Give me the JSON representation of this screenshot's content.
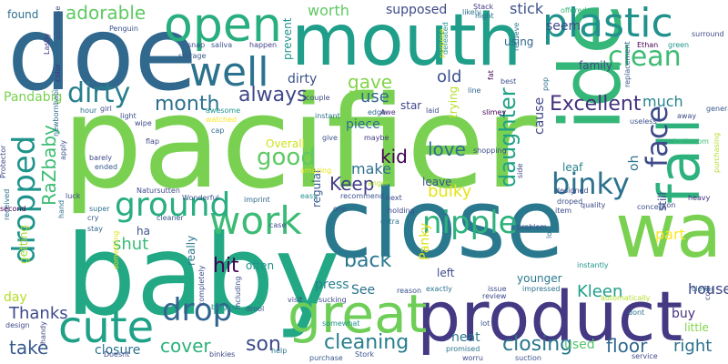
{
  "words": [
    {
      "text": "pacifier",
      "color": "#7ad151"
    },
    {
      "text": "baby",
      "color": "#22a884"
    },
    {
      "text": "close",
      "color": "#2a788e"
    },
    {
      "text": "mouth",
      "color": "#1f9e89"
    },
    {
      "text": "doe",
      "color": "#31688e"
    },
    {
      "text": "product",
      "color": "#443983"
    },
    {
      "text": "idea",
      "color": "#35b779"
    },
    {
      "text": "wa",
      "color": "#7ad151"
    },
    {
      "text": "great",
      "color": "#6ece58"
    },
    {
      "text": "fall",
      "color": "#2db27d"
    },
    {
      "text": "open",
      "color": "#29af7f"
    },
    {
      "text": "well",
      "color": "#2c728e"
    },
    {
      "text": "plastic",
      "color": "#21918c"
    },
    {
      "text": "cute",
      "color": "#1fa188"
    },
    {
      "text": "work",
      "color": "#3bbb75"
    },
    {
      "text": "dropped",
      "color": "#1f948c"
    },
    {
      "text": "ground",
      "color": "#28ae80"
    },
    {
      "text": "dirty",
      "color": "#277f8e"
    },
    {
      "text": "nipple",
      "color": "#2db27d"
    },
    {
      "text": "binky",
      "color": "#2c728e"
    },
    {
      "text": "drop",
      "color": "#32658e"
    },
    {
      "text": "face",
      "color": "#3e4a89"
    },
    {
      "text": "clean",
      "color": "#3dbc74"
    },
    {
      "text": "Excellent",
      "color": "#46327e"
    },
    {
      "text": "cleaning",
      "color": "#277f8e"
    },
    {
      "text": "closing",
      "color": "#2a788e"
    },
    {
      "text": "daughter",
      "color": "#20a386"
    },
    {
      "text": "good",
      "color": "#5ec962"
    },
    {
      "text": "always",
      "color": "#3f4788"
    },
    {
      "text": "adorable",
      "color": "#5ec962"
    },
    {
      "text": "month",
      "color": "#2d708e"
    },
    {
      "text": "Keep",
      "color": "#433e85"
    },
    {
      "text": "RaZbaby",
      "color": "#3dbc74"
    },
    {
      "text": "hit",
      "color": "#440154"
    },
    {
      "text": "love",
      "color": "#2d708e"
    },
    {
      "text": "gave",
      "color": "#84d44b"
    },
    {
      "text": "cover",
      "color": "#2db27d"
    },
    {
      "text": "back",
      "color": "#2a778e"
    },
    {
      "text": "floor",
      "color": "#31688e"
    },
    {
      "text": "son",
      "color": "#3e4a89"
    },
    {
      "text": "kid",
      "color": "#440154"
    },
    {
      "text": "take",
      "color": "#38598c"
    },
    {
      "text": "bulky",
      "color": "#e5e419"
    },
    {
      "text": "make",
      "color": "#2d708e"
    },
    {
      "text": "use",
      "color": "#31688e"
    },
    {
      "text": "shut",
      "color": "#3aba76"
    },
    {
      "text": "Kleen",
      "color": "#1f9e89"
    },
    {
      "text": "old",
      "color": "#3b528b"
    },
    {
      "text": "right",
      "color": "#2c728e"
    },
    {
      "text": "worth",
      "color": "#5ec962"
    },
    {
      "text": "stick",
      "color": "#3b528b"
    },
    {
      "text": "supposed",
      "color": "#3e4a89"
    },
    {
      "text": "seem",
      "color": "#3e4a89"
    },
    {
      "text": "dirty",
      "color": "#3b528b"
    },
    {
      "text": "Thanks",
      "color": "#3e4a89"
    },
    {
      "text": "day",
      "color": "#b5de2b"
    },
    {
      "text": "closure",
      "color": "#2c728e"
    },
    {
      "text": "house",
      "color": "#3f4788"
    },
    {
      "text": "buy",
      "color": "#46327e"
    },
    {
      "text": "used",
      "color": "#52c569"
    },
    {
      "text": "neat",
      "color": "#2a788e"
    },
    {
      "text": "press",
      "color": "#26828e"
    },
    {
      "text": "See",
      "color": "#2c728e"
    },
    {
      "text": "cause",
      "color": "#404688"
    },
    {
      "text": "Panky",
      "color": "#dde318"
    },
    {
      "text": "Pandabig",
      "color": "#7ad151"
    },
    {
      "text": "found",
      "color": "#2d708e"
    },
    {
      "text": "star",
      "color": "#3f4788"
    },
    {
      "text": "piece",
      "color": "#2d708e"
    },
    {
      "text": "much",
      "color": "#25848e"
    },
    {
      "text": "part",
      "color": "#fde725"
    },
    {
      "text": "oh",
      "color": "#2c728e"
    },
    {
      "text": "leaf",
      "color": "#25848e"
    },
    {
      "text": "leave",
      "color": "#3b528b"
    },
    {
      "text": "left",
      "color": "#3e4a89"
    },
    {
      "text": "often",
      "color": "#1f948c"
    },
    {
      "text": "getting",
      "color": "#a8db34"
    },
    {
      "text": "really",
      "color": "#2a788e"
    },
    {
      "text": "regular",
      "color": "#375a8c"
    },
    {
      "text": "trying",
      "color": "#b5de2b"
    },
    {
      "text": "little",
      "color": "#84d44b"
    },
    {
      "text": "family",
      "color": "#3f4788"
    },
    {
      "text": "using",
      "color": "#31688e"
    },
    {
      "text": "ha",
      "color": "#3b528b"
    },
    {
      "text": "Overall",
      "color": "#d0e11c"
    },
    {
      "text": "still",
      "color": "#3e4a89"
    },
    {
      "text": "younger",
      "color": "#2a788e"
    },
    {
      "text": "prevent",
      "color": "#1f948c"
    },
    {
      "text": "offered",
      "color": "#35b779"
    },
    {
      "text": "Stack",
      "color": "#443983"
    },
    {
      "text": "night",
      "color": "#2d708e"
    },
    {
      "text": "likely",
      "color": "#2c728e"
    },
    {
      "text": "snap",
      "color": "#3e4a89"
    },
    {
      "text": "saliva",
      "color": "#3b528b"
    },
    {
      "text": "happen",
      "color": "#404688"
    },
    {
      "text": "storage",
      "color": "#38598c"
    },
    {
      "text": "Penguin",
      "color": "#3b528b"
    },
    {
      "text": "Lastly",
      "color": "#46327e"
    },
    {
      "text": "color",
      "color": "#46327e"
    },
    {
      "text": "advertise",
      "color": "#3b528b"
    },
    {
      "text": "defeated",
      "color": "#1f948c"
    },
    {
      "text": "purpose",
      "color": "#e5e419"
    },
    {
      "text": "fat",
      "color": "#440154"
    },
    {
      "text": "retrieve",
      "color": "#2a788e"
    },
    {
      "text": "Ethan",
      "color": "#440154"
    },
    {
      "text": "green",
      "color": "#1f948c"
    },
    {
      "text": "surround",
      "color": "#3e4a89"
    },
    {
      "text": "couple",
      "color": "#3e4a89"
    },
    {
      "text": "edge",
      "color": "#31688e"
    },
    {
      "text": "Awe",
      "color": "#472c7a"
    },
    {
      "text": "laid",
      "color": "#3e4a89"
    },
    {
      "text": "slimey",
      "color": "#440154"
    },
    {
      "text": "best",
      "color": "#3b528b"
    },
    {
      "text": "line",
      "color": "#31688e"
    },
    {
      "text": "pop",
      "color": "#2c728e"
    },
    {
      "text": "replacement",
      "color": "#38598c"
    },
    {
      "text": "general",
      "color": "#38598c"
    },
    {
      "text": "away",
      "color": "#3e4a89"
    },
    {
      "text": "hour",
      "color": "#2c728e"
    },
    {
      "text": "girl",
      "color": "#3e4a89"
    },
    {
      "text": "awesome",
      "color": "#1f948c"
    },
    {
      "text": "light",
      "color": "#3b528b"
    },
    {
      "text": "watched",
      "color": "#fde725"
    },
    {
      "text": "instant",
      "color": "#2c728e"
    },
    {
      "text": "useless",
      "color": "#3b528b"
    },
    {
      "text": "wipe",
      "color": "#3e4a89"
    },
    {
      "text": "cap",
      "color": "#31688e"
    },
    {
      "text": "flap",
      "color": "#3e4a89"
    },
    {
      "text": "bathroom",
      "color": "#3dbc74"
    },
    {
      "text": "barely",
      "color": "#3e4a89"
    },
    {
      "text": "ended",
      "color": "#38598c"
    },
    {
      "text": "give",
      "color": "#3b528b"
    },
    {
      "text": "maybe",
      "color": "#443983"
    },
    {
      "text": "side",
      "color": "#3e4a89"
    },
    {
      "text": "newbornbabies",
      "color": "#31688e"
    },
    {
      "text": "Protector",
      "color": "#3e4a89"
    },
    {
      "text": "amazing",
      "color": "#e5e419"
    },
    {
      "text": "apply",
      "color": "#3b528b"
    },
    {
      "text": "shopping",
      "color": "#3e4a89"
    },
    {
      "text": "purchasing",
      "color": "#b5de2b"
    },
    {
      "text": "Natursutten",
      "color": "#3e4a89"
    },
    {
      "text": "anger",
      "color": "#b5de2b"
    },
    {
      "text": "designed",
      "color": "#3e4a89"
    },
    {
      "text": "luck",
      "color": "#404688"
    },
    {
      "text": "easy",
      "color": "#21918c"
    },
    {
      "text": "next",
      "color": "#3e4a89"
    },
    {
      "text": "droped",
      "color": "#3b528b"
    },
    {
      "text": "hand",
      "color": "#2c728e"
    },
    {
      "text": "imprint",
      "color": "#31688e"
    },
    {
      "text": "recommend",
      "color": "#3b528b"
    },
    {
      "text": "quality",
      "color": "#3e4a89"
    },
    {
      "text": "concept",
      "color": "#3b528b"
    },
    {
      "text": "con",
      "color": "#3e4a89"
    },
    {
      "text": "heavy",
      "color": "#472c7a"
    },
    {
      "text": "received",
      "color": "#2c728e"
    },
    {
      "text": "second",
      "color": "#440154"
    },
    {
      "text": "super",
      "color": "#2c728e"
    },
    {
      "text": "Wonderful",
      "color": "#3b528b"
    },
    {
      "text": "one",
      "color": "#3b528b"
    },
    {
      "text": "holding",
      "color": "#3e4a89"
    },
    {
      "text": "item",
      "color": "#3e4a89"
    },
    {
      "text": "cry",
      "color": "#38598c"
    },
    {
      "text": "cleaner",
      "color": "#38598c"
    },
    {
      "text": "extra",
      "color": "#2c728e"
    },
    {
      "text": "stay",
      "color": "#31688e"
    },
    {
      "text": "case",
      "color": "#3e4a89"
    },
    {
      "text": "problem",
      "color": "#3b528b"
    },
    {
      "text": "lol",
      "color": "#2c728e"
    },
    {
      "text": "instantly",
      "color": "#1f948c"
    },
    {
      "text": "something",
      "color": "#e5e419"
    },
    {
      "text": "completely",
      "color": "#3e4a89"
    },
    {
      "text": "including",
      "color": "#3b528b"
    },
    {
      "text": "exactly",
      "color": "#2c728e"
    },
    {
      "text": "issue",
      "color": "#3e4a89"
    },
    {
      "text": "impressed",
      "color": "#2c728e"
    },
    {
      "text": "review",
      "color": "#3e4a89"
    },
    {
      "text": "clever",
      "color": "#31688e"
    },
    {
      "text": "cool",
      "color": "#3e4a89"
    },
    {
      "text": "automatically",
      "color": "#b5de2b"
    },
    {
      "text": "biggest",
      "color": "#21918c"
    },
    {
      "text": "drool",
      "color": "#3b528b"
    },
    {
      "text": "visit",
      "color": "#3e4a89"
    },
    {
      "text": "sucking",
      "color": "#3e4a89"
    },
    {
      "text": "reason",
      "color": "#3b528b"
    },
    {
      "text": "dont",
      "color": "#2c728e"
    },
    {
      "text": "design",
      "color": "#3e4a89"
    },
    {
      "text": "handy",
      "color": "#3e4a89"
    },
    {
      "text": "somewhat",
      "color": "#1f948c"
    },
    {
      "text": "lot",
      "color": "#3b528b"
    },
    {
      "text": "help",
      "color": "#2c728e"
    },
    {
      "text": "Doesnt",
      "color": "#3e4a89"
    },
    {
      "text": "binkies",
      "color": "#3e4a89"
    },
    {
      "text": "purchase",
      "color": "#38598c"
    },
    {
      "text": "Stork",
      "color": "#3b528b"
    },
    {
      "text": "promised",
      "color": "#2c728e"
    },
    {
      "text": "worru",
      "color": "#3e4a89"
    },
    {
      "text": "suction",
      "color": "#3b528b"
    },
    {
      "text": "service",
      "color": "#3e4a89"
    },
    {
      "text": "sanitary",
      "color": "#3e4a89"
    }
  ]
}
